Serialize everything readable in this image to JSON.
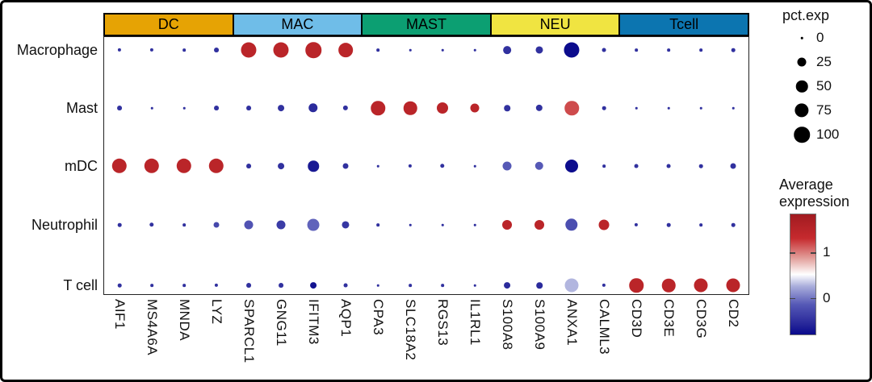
{
  "chart_data": {
    "type": "dotplot",
    "title": "",
    "rows": [
      "Macrophage",
      "Mast",
      "mDC",
      "Neutrophil",
      "T cell"
    ],
    "gene_groups": [
      {
        "label": "DC",
        "color": "#E6A304",
        "genes": [
          "AIF1",
          "MS4A6A",
          "MNDA",
          "LYZ"
        ]
      },
      {
        "label": "MAC",
        "color": "#6FBDE8",
        "genes": [
          "SPARCL1",
          "GNG11",
          "IFITM3",
          "AQP1"
        ]
      },
      {
        "label": "MAST",
        "color": "#0C9F72",
        "genes": [
          "CPA3",
          "SLC18A2",
          "RGS13",
          "IL1RL1"
        ]
      },
      {
        "label": "NEU",
        "color": "#F0E441",
        "genes": [
          "S100A8",
          "S100A9",
          "ANXA1",
          "CALML3"
        ]
      },
      {
        "label": "Tcell",
        "color": "#0C75B0",
        "genes": [
          "CD3D",
          "CD3E",
          "CD3G",
          "CD2"
        ]
      }
    ],
    "pct_exp": {
      "Macrophage": [
        1,
        1,
        0.5,
        4,
        95,
        95,
        100,
        80,
        0.5,
        0,
        0,
        0,
        18,
        15,
        95,
        2,
        0.5,
        0.5,
        0.5,
        1.5
      ],
      "Mast": [
        4,
        0,
        0,
        4,
        4,
        10,
        28,
        5,
        78,
        68,
        46,
        25,
        9,
        12,
        78,
        1.5,
        0,
        0,
        0,
        0
      ],
      "mDC": [
        88,
        88,
        88,
        88,
        4,
        10,
        42,
        7,
        0,
        1,
        3,
        0,
        25,
        22,
        63,
        0.5,
        2,
        2,
        1.5,
        7
      ],
      "Neutrophil": [
        1.5,
        3,
        0.5,
        7,
        25,
        25,
        54,
        15,
        0.5,
        0,
        0,
        0,
        31,
        31,
        58,
        38,
        1,
        1.5,
        0.5,
        1.5
      ],
      "T cell": [
        1.5,
        0.5,
        0.5,
        1,
        4,
        4,
        10,
        2,
        0,
        0.5,
        0.5,
        0,
        10,
        9,
        73,
        1,
        78,
        68,
        73,
        73
      ]
    },
    "avg_exp": {
      "Macrophage": [
        -0.5,
        -0.5,
        -0.5,
        -0.5,
        1.5,
        1.5,
        1.5,
        1.5,
        -0.5,
        -0.5,
        -0.5,
        -0.5,
        -0.5,
        -0.5,
        -0.8,
        -0.5,
        -0.5,
        -0.5,
        -0.5,
        -0.5
      ],
      "Mast": [
        -0.5,
        -0.5,
        -0.5,
        -0.5,
        -0.5,
        -0.5,
        -0.55,
        -0.5,
        1.5,
        1.5,
        1.5,
        1.5,
        -0.5,
        -0.5,
        1.2,
        -0.5,
        -0.5,
        -0.5,
        -0.5,
        -0.5
      ],
      "mDC": [
        1.5,
        1.5,
        1.5,
        1.5,
        -0.5,
        -0.5,
        -0.7,
        -0.5,
        -0.5,
        -0.5,
        -0.5,
        -0.5,
        -0.15,
        -0.15,
        -0.8,
        -0.5,
        -0.5,
        -0.5,
        -0.5,
        -0.5
      ],
      "Neutrophil": [
        -0.5,
        -0.5,
        -0.5,
        -0.3,
        -0.2,
        -0.4,
        -0.1,
        -0.45,
        -0.5,
        -0.5,
        -0.5,
        -0.5,
        1.5,
        1.5,
        -0.25,
        1.5,
        -0.5,
        -0.5,
        -0.5,
        -0.5
      ],
      "T cell": [
        -0.5,
        -0.5,
        -0.5,
        -0.5,
        -0.5,
        -0.5,
        -0.75,
        -0.5,
        -0.5,
        -0.5,
        -0.5,
        -0.5,
        -0.55,
        -0.55,
        0.28,
        -0.5,
        1.5,
        1.5,
        1.5,
        1.5
      ]
    },
    "size_legend": {
      "title": "pct.exp",
      "values": [
        0,
        25,
        50,
        75,
        100
      ]
    },
    "color_legend": {
      "title_line1": "Average",
      "title_line2": "expression",
      "ticks": [
        1,
        0
      ],
      "vmin": -0.82,
      "vmax": 1.86,
      "palette": [
        {
          "t": 0.0,
          "c": "#0A0A8C"
        },
        {
          "t": 0.1,
          "c": "#2B2B9C"
        },
        {
          "t": 0.25,
          "c": "#5659B6"
        },
        {
          "t": 0.4,
          "c": "#A9ADDB"
        },
        {
          "t": 0.5,
          "c": "#FFFFFF"
        },
        {
          "t": 0.63,
          "c": "#E3A29E"
        },
        {
          "t": 0.8,
          "c": "#C62A2E"
        },
        {
          "t": 1.0,
          "c": "#A11B20"
        }
      ]
    }
  }
}
